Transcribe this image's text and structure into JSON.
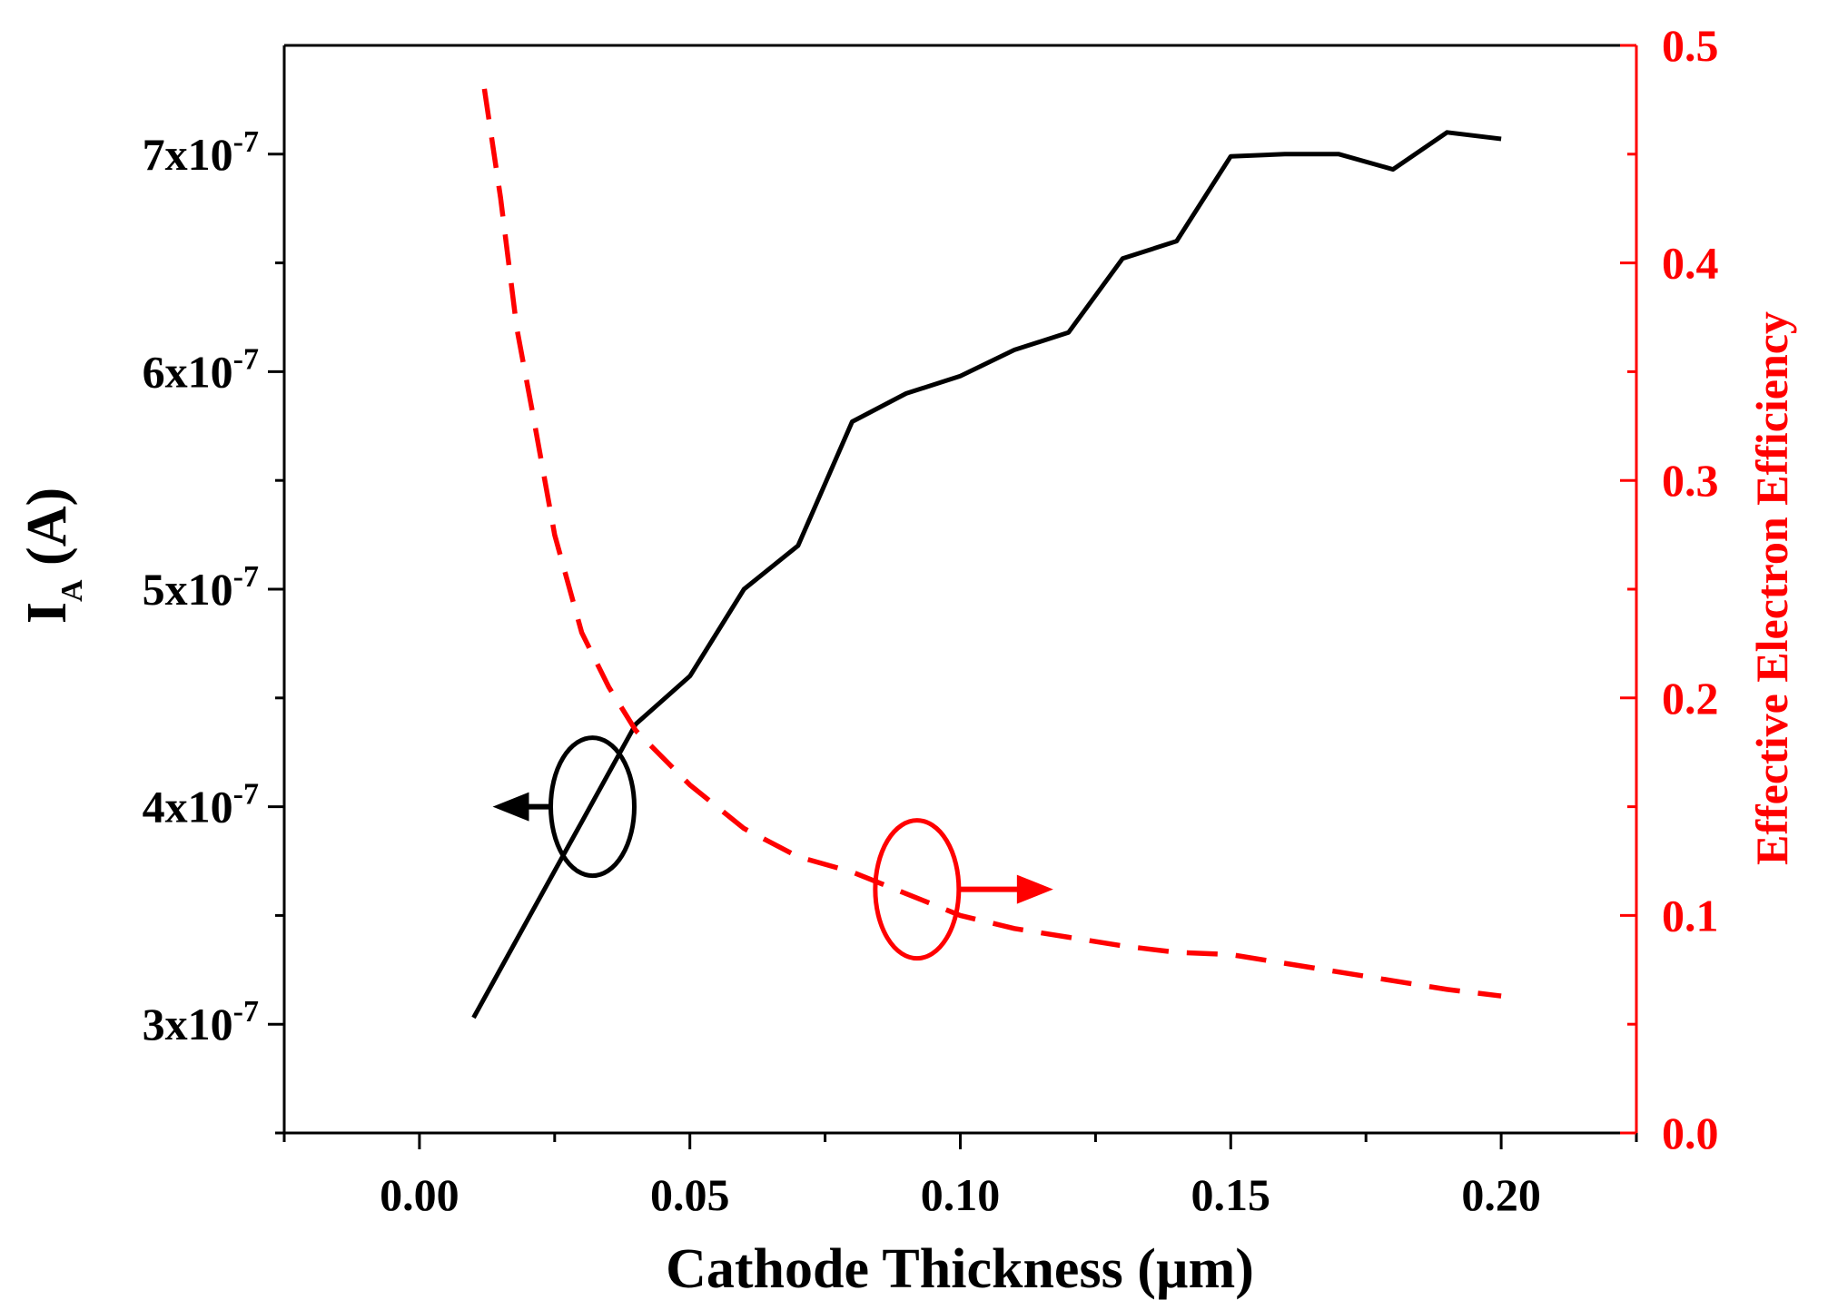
{
  "chart_data": {
    "type": "line",
    "title": "",
    "xlabel": "Cathode Thickness (µm)",
    "ylabel": {
      "main": "I",
      "sub": "A",
      "unit": " (A)"
    },
    "y2label": "Effective Electron Efficiency",
    "xlim": [
      -0.025,
      0.225
    ],
    "ylim": [
      2.5e-07,
      7.5e-07
    ],
    "y2lim": [
      0.0,
      0.5
    ],
    "x_ticks": [
      "0.00",
      "0.05",
      "0.10",
      "0.15",
      "0.20"
    ],
    "y_ticks": [
      {
        "base": "3x10",
        "exp": "-7"
      },
      {
        "base": "4x10",
        "exp": "-7"
      },
      {
        "base": "5x10",
        "exp": "-7"
      },
      {
        "base": "6x10",
        "exp": "-7"
      },
      {
        "base": "7x10",
        "exp": "-7"
      }
    ],
    "y2_ticks": [
      "0.0",
      "0.1",
      "0.2",
      "0.3",
      "0.4",
      "0.5"
    ],
    "grid": false,
    "series": [
      {
        "name": "I_A",
        "axis": "left",
        "color": "#000000",
        "style": "solid",
        "x": [
          0.01,
          0.02,
          0.03,
          0.04,
          0.05,
          0.06,
          0.07,
          0.08,
          0.09,
          0.1,
          0.11,
          0.12,
          0.13,
          0.14,
          0.15,
          0.16,
          0.17,
          0.18,
          0.19,
          0.2
        ],
        "values": [
          3.03e-07,
          3.48e-07,
          3.93e-07,
          4.38e-07,
          4.6e-07,
          5e-07,
          5.2e-07,
          5.77e-07,
          5.9e-07,
          5.98e-07,
          6.1e-07,
          6.18e-07,
          6.52e-07,
          6.6e-07,
          6.99e-07,
          7e-07,
          7e-07,
          6.93e-07,
          7.1e-07,
          7.07e-07
        ]
      },
      {
        "name": "Effective Electron Efficiency",
        "axis": "right",
        "color": "#ff0000",
        "style": "dashed",
        "x": [
          0.012,
          0.015,
          0.018,
          0.021,
          0.025,
          0.03,
          0.035,
          0.04,
          0.05,
          0.06,
          0.07,
          0.08,
          0.09,
          0.1,
          0.11,
          0.12,
          0.13,
          0.14,
          0.15,
          0.16,
          0.17,
          0.18,
          0.19,
          0.2
        ],
        "values": [
          0.48,
          0.43,
          0.37,
          0.33,
          0.275,
          0.23,
          0.205,
          0.185,
          0.16,
          0.14,
          0.127,
          0.12,
          0.11,
          0.1,
          0.094,
          0.09,
          0.086,
          0.083,
          0.082,
          0.078,
          0.074,
          0.07,
          0.066,
          0.063
        ]
      }
    ],
    "annotations": [
      {
        "name": "left-series-marker",
        "color": "#000000",
        "center": [
          0.032,
          4e-07
        ],
        "points_to": "left"
      },
      {
        "name": "right-series-marker",
        "color": "#ff0000",
        "center": [
          0.092,
          3.62e-07
        ],
        "points_to": "right"
      }
    ]
  },
  "colors": {
    "left_axis": "#000000",
    "right_axis": "#ff0000",
    "background": "#ffffff"
  }
}
